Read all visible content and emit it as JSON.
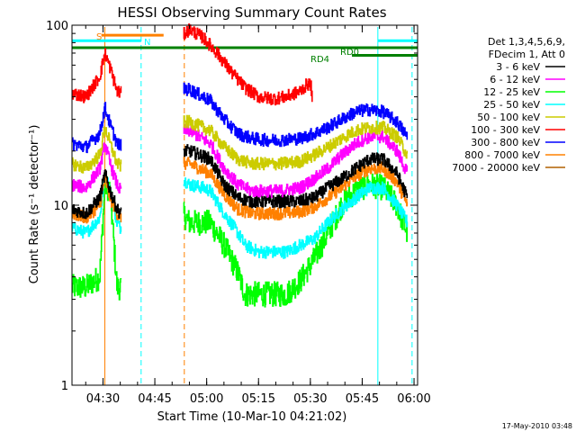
{
  "chart_data": {
    "type": "line",
    "title": "HESSI Observing Summary Count Rates",
    "xlabel": "Start Time (10-Mar-10 04:21:02)",
    "ylabel": "Count Rate (s⁻¹ detector⁻¹)",
    "ylog": true,
    "ylim": [
      1,
      100
    ],
    "xlim_minutes": [
      0,
      100
    ],
    "x_unit": "minutes after 04:21:02",
    "x_ticks": [
      {
        "label": "04:30",
        "t": 8.97
      },
      {
        "label": "04:45",
        "t": 23.97
      },
      {
        "label": "05:00",
        "t": 38.97
      },
      {
        "label": "05:15",
        "t": 53.97
      },
      {
        "label": "05:30",
        "t": 68.97
      },
      {
        "label": "05:45",
        "t": 83.97
      },
      {
        "label": "06:00",
        "t": 98.97
      }
    ],
    "y_ticks": [
      {
        "label": "1",
        "v": 1
      },
      {
        "label": "10",
        "v": 10
      },
      {
        "label": "100",
        "v": 100
      }
    ],
    "legend_header": [
      "Det 1,3,4,5,6,9,",
      "FDecim 1, Att 0"
    ],
    "series": [
      {
        "name": "3 - 6 keV",
        "color": "#000000",
        "x": [
          0,
          4,
          8,
          9.5,
          11,
          13,
          14,
          32,
          34,
          40,
          44,
          48,
          52,
          56,
          60,
          66,
          70,
          74,
          78,
          82,
          86,
          90,
          94,
          97
        ],
        "y": [
          9.5,
          9,
          11,
          15,
          12,
          9.5,
          9,
          20,
          20,
          18,
          13,
          11,
          10.5,
          10.5,
          10.5,
          10.5,
          11,
          12.5,
          14,
          16,
          18,
          18,
          15,
          11
        ]
      },
      {
        "name": "6 - 12 keV",
        "color": "#ff00ff",
        "x": [
          0,
          4,
          8,
          9.5,
          11,
          13,
          14,
          32,
          34,
          40,
          44,
          48,
          52,
          56,
          60,
          66,
          70,
          74,
          78,
          82,
          86,
          90,
          94,
          97
        ],
        "y": [
          13,
          12.5,
          16,
          22,
          17,
          13,
          12,
          26,
          26,
          22,
          16,
          13,
          12,
          12,
          12,
          12.5,
          14,
          16,
          19,
          22,
          24,
          24,
          20,
          15
        ]
      },
      {
        "name": "12 - 25 keV",
        "color": "#00ff00",
        "x": [
          0,
          4,
          8,
          9.5,
          11,
          13,
          14,
          32,
          34,
          38,
          40,
          44,
          48,
          50,
          54,
          58,
          62,
          66,
          70,
          74,
          78,
          82,
          86,
          90,
          94,
          97
        ],
        "y": [
          3.5,
          3.5,
          4,
          13,
          12,
          3.5,
          3.5,
          9,
          8,
          8,
          8,
          6,
          4.2,
          3.2,
          3.2,
          3.2,
          3.2,
          3.8,
          5,
          7,
          10,
          12,
          13,
          12.5,
          10,
          7
        ]
      },
      {
        "name": "25 - 50 keV",
        "color": "#00ffff",
        "x": [
          0,
          4,
          8,
          9.5,
          11,
          13,
          14,
          32,
          34,
          38,
          40,
          44,
          48,
          50,
          54,
          58,
          62,
          66,
          70,
          74,
          78,
          82,
          86,
          90,
          94,
          97
        ],
        "y": [
          7.5,
          7,
          8.5,
          15,
          12,
          8,
          7.5,
          14,
          13,
          12.5,
          12,
          9,
          7,
          6,
          5.5,
          5.5,
          5.5,
          6,
          6.5,
          8,
          9.5,
          11,
          12.5,
          12.5,
          10,
          8
        ]
      },
      {
        "name": "50 - 100 keV",
        "color": "#cccc00",
        "x": [
          0,
          4,
          8,
          9.5,
          11,
          13,
          14,
          32,
          34,
          40,
          44,
          48,
          52,
          56,
          60,
          66,
          70,
          74,
          78,
          82,
          86,
          90,
          94,
          97
        ],
        "y": [
          17,
          16,
          19,
          27,
          22,
          17,
          16.5,
          29,
          29,
          26,
          21,
          18,
          17,
          17,
          17,
          17.5,
          19,
          21,
          23.5,
          26,
          27,
          27,
          24,
          19
        ]
      },
      {
        "name": "100 - 300 keV",
        "color": "#ff0000",
        "x": [
          0,
          4,
          8,
          9.5,
          11,
          13,
          14,
          32,
          34,
          38,
          42,
          46,
          50,
          54,
          58,
          62,
          66,
          68,
          69,
          69.5
        ],
        "y": [
          42,
          40,
          52,
          70,
          58,
          43,
          42,
          88,
          95,
          85,
          70,
          55,
          45,
          40,
          39,
          40,
          43,
          47,
          47,
          40
        ]
      },
      {
        "name": "300 - 800 keV",
        "color": "#0000ff",
        "x": [
          0,
          4,
          8,
          9.5,
          11,
          13,
          14,
          32,
          34,
          40,
          44,
          48,
          52,
          56,
          60,
          66,
          70,
          74,
          78,
          82,
          86,
          90,
          94,
          97
        ],
        "y": [
          22,
          21,
          25,
          35,
          28,
          22,
          21.5,
          44,
          44,
          38,
          30,
          25,
          23.5,
          23,
          23,
          23.5,
          25,
          27,
          30,
          33,
          34,
          33,
          29,
          24
        ]
      },
      {
        "name": "800 - 7000 keV",
        "color": "#ff8000",
        "x": [
          0,
          4,
          8,
          9.5,
          11,
          13,
          14,
          32,
          34,
          40,
          44,
          48,
          52,
          56,
          60,
          66,
          70,
          74,
          78,
          82,
          86,
          90,
          94,
          97
        ],
        "y": [
          9,
          8.5,
          10,
          14,
          11,
          9,
          8.5,
          17,
          17,
          15,
          11.5,
          9.5,
          9,
          9,
          9,
          9.2,
          9.8,
          11,
          12.5,
          14.5,
          16,
          16,
          13.5,
          10
        ]
      },
      {
        "name": "7000 - 20000 keV",
        "color": "#b06000",
        "x": [],
        "y": []
      }
    ],
    "flags": [
      {
        "label": "S",
        "color": "#ff8000",
        "x_start": 8.5,
        "x_end": 26.5,
        "level": 88
      },
      {
        "label": "N",
        "color": "#00ffff",
        "x_start": 0,
        "x_end": 20,
        "level": 82
      },
      {
        "label": "N",
        "color": "#00ffff",
        "x_start": 88.5,
        "x_end": 100,
        "level": 82
      },
      {
        "label": "RD0",
        "color": "#008000",
        "x_start": 0,
        "x_end": 100,
        "level": 75
      },
      {
        "label": "RD4",
        "color": "#008000",
        "x_start": 81,
        "x_end": 100,
        "level": 68
      }
    ],
    "vertical_markers": [
      {
        "x": 0,
        "color": "#00ffff",
        "style": "solid"
      },
      {
        "x": 20,
        "color": "#00ffff",
        "style": "dashed"
      },
      {
        "x": 88.5,
        "color": "#00ffff",
        "style": "solid"
      },
      {
        "x": 98.4,
        "color": "#00ffff",
        "style": "dashed"
      },
      {
        "x": 9.5,
        "color": "#ff8000",
        "style": "solid"
      },
      {
        "x": 32.5,
        "color": "#ff8000",
        "style": "dashed"
      }
    ],
    "footer_timestamp": "17-May-2010 03:48",
    "grid": false,
    "legend_placement": "right"
  }
}
